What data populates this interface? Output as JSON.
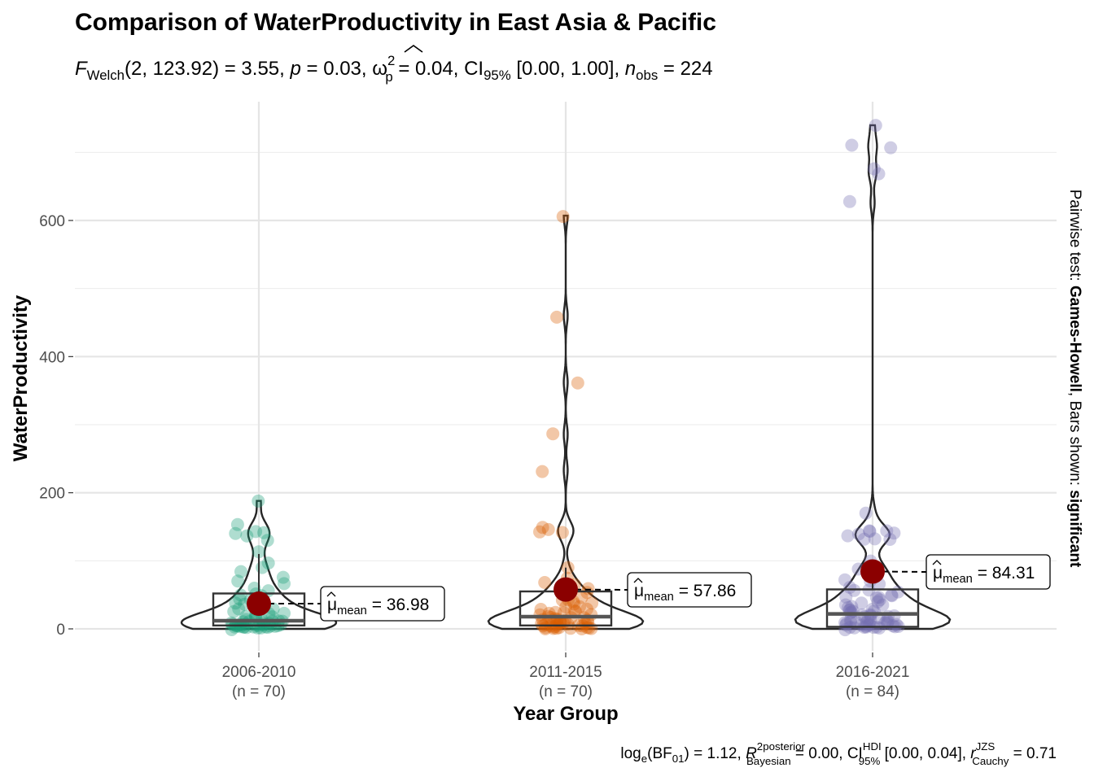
{
  "chart_data": {
    "type": "violin-box-scatter",
    "title": "Comparison of WaterProductivity in East Asia & Pacific",
    "subtitle": {
      "f_symbol": "F",
      "f_sub": "Welch",
      "df": "(2, 123.92)",
      "f_value": " = 3.55, ",
      "p_symbol": "p",
      "p_value": " = 0.03, ",
      "omega_symbol": "ω",
      "omega_sup": "2",
      "omega_sub": "p",
      "omega_value": " = 0.04, CI",
      "ci_sub": "95%",
      "ci_value": " [0.00, 1.00], ",
      "n_symbol": "n",
      "n_sub": "obs",
      "n_value": " = 224"
    },
    "xlabel": "Year Group",
    "ylabel": "WaterProductivity",
    "ylim": [
      -20,
      780
    ],
    "yticks": [
      0,
      200,
      400,
      600
    ],
    "grid": true,
    "categories": [
      "2006-2010",
      "2011-2015",
      "2016-2021"
    ],
    "category_counts": [
      "(n = 70)",
      "(n = 70)",
      "(n = 84)"
    ],
    "colors": [
      "#1b9e77",
      "#d95f02",
      "#7570b3"
    ],
    "mean_color": "#8b0000",
    "groups": [
      {
        "name": "2006-2010",
        "mean": 36.98,
        "mean_label": " = 36.98",
        "box": {
          "q1": 5,
          "median": 12,
          "q3": 52,
          "whisker_low": 0,
          "whisker_high": 110
        },
        "violin_max": 188,
        "points": [
          188,
          152,
          143,
          142,
          141,
          138,
          128,
          112,
          95,
          90,
          82,
          78,
          70,
          65,
          60,
          55,
          52,
          50,
          48,
          45,
          42,
          40,
          38,
          35,
          33,
          30,
          28,
          26,
          25,
          23,
          22,
          20,
          19,
          18,
          17,
          16,
          15,
          14,
          13,
          12,
          11,
          10,
          10,
          9,
          9,
          8,
          8,
          7,
          7,
          6,
          6,
          5,
          5,
          5,
          4,
          4,
          4,
          3,
          3,
          3,
          3,
          2,
          2,
          2,
          2,
          1,
          1,
          1,
          1,
          0
        ]
      },
      {
        "name": "2011-2015",
        "mean": 57.86,
        "mean_label": " = 57.86",
        "box": {
          "q1": 5,
          "median": 18,
          "q3": 55,
          "whisker_low": 0,
          "whisker_high": 90
        },
        "violin_max": 607,
        "points": [
          607,
          460,
          362,
          286,
          233,
          147,
          145,
          143,
          141,
          92,
          74,
          70,
          65,
          60,
          56,
          53,
          50,
          48,
          45,
          42,
          40,
          38,
          36,
          34,
          32,
          30,
          28,
          26,
          25,
          24,
          23,
          22,
          21,
          20,
          19,
          18,
          17,
          16,
          15,
          14,
          13,
          12,
          11,
          10,
          10,
          9,
          9,
          8,
          8,
          7,
          7,
          6,
          6,
          5,
          5,
          5,
          4,
          4,
          4,
          3,
          3,
          3,
          2,
          2,
          2,
          1,
          1,
          1,
          1,
          0
        ]
      },
      {
        "name": "2016-2021",
        "mean": 84.31,
        "mean_label": " = 84.31",
        "box": {
          "q1": 3,
          "median": 22,
          "q3": 58,
          "whisker_low": 0,
          "whisker_high": 100
        },
        "violin_max": 740,
        "points": [
          740,
          710,
          708,
          676,
          668,
          626,
          172,
          146,
          145,
          142,
          140,
          138,
          136,
          134,
          132,
          130,
          98,
          92,
          88,
          84,
          80,
          76,
          72,
          68,
          64,
          60,
          58,
          56,
          54,
          52,
          50,
          48,
          46,
          44,
          42,
          40,
          38,
          36,
          34,
          32,
          30,
          29,
          28,
          27,
          26,
          25,
          24,
          23,
          22,
          21,
          20,
          19,
          18,
          17,
          16,
          15,
          14,
          13,
          12,
          11,
          10,
          10,
          9,
          9,
          8,
          8,
          7,
          7,
          6,
          6,
          5,
          5,
          5,
          4,
          4,
          4,
          3,
          3,
          3,
          2,
          2,
          1,
          1,
          0
        ]
      }
    ],
    "mu_symbol": "μ",
    "mu_sub": "mean",
    "side_label": {
      "prefix": "Pairwise test: ",
      "test": "Games-Howell",
      "middle": ", Bars shown: ",
      "shown": "significant"
    },
    "caption": {
      "log": "log",
      "log_sub": "e",
      "bf": "(BF",
      "bf_sub": "01",
      "bf_value": ") = 1.12, ",
      "r_symbol": "R",
      "r_sup": "2",
      "r_sup2": "posterior",
      "r_sub": "Bayesian",
      "r_value": " = 0.00, CI",
      "ci_sup": "HDI",
      "ci_sub": "95%",
      "ci_value": " [0.00, 0.04], ",
      "rc_symbol": "r",
      "rc_sup": "JZS",
      "rc_sub": "Cauchy",
      "rc_value": " = 0.71"
    }
  }
}
